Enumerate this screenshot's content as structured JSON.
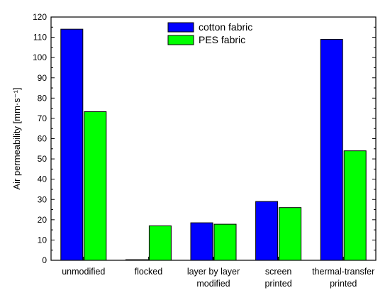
{
  "chart_data": {
    "type": "bar",
    "categories": [
      [
        "unmodified"
      ],
      [
        "flocked"
      ],
      [
        "layer by layer",
        "modified"
      ],
      [
        "screen",
        "printed"
      ],
      [
        "thermal-transfer",
        "printed"
      ]
    ],
    "series": [
      {
        "name": "cotton fabric",
        "color": "#0000ff",
        "values": [
          114,
          0.3,
          18.5,
          29,
          109
        ]
      },
      {
        "name": "PES fabric",
        "color": "#00ff00",
        "values": [
          73.3,
          17,
          17.8,
          26,
          54
        ]
      }
    ],
    "ylabel": "Air permeability [mm·s⁻¹]",
    "ylim": [
      0,
      120
    ],
    "yticks": [
      0,
      10,
      20,
      30,
      40,
      50,
      60,
      70,
      80,
      90,
      100,
      110,
      120
    ],
    "grid": false,
    "legend_position": "top-center"
  }
}
